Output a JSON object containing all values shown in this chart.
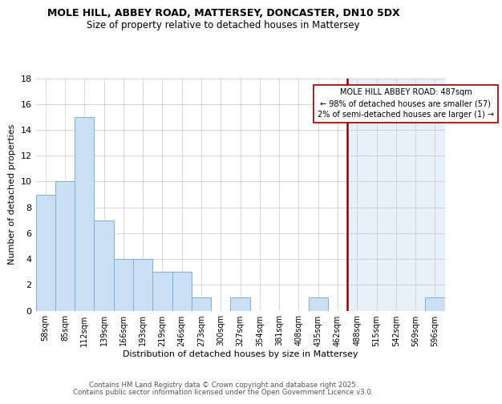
{
  "title_line1": "MOLE HILL, ABBEY ROAD, MATTERSEY, DONCASTER, DN10 5DX",
  "title_line2": "Size of property relative to detached houses in Mattersey",
  "xlabel": "Distribution of detached houses by size in Mattersey",
  "ylabel": "Number of detached properties",
  "categories": [
    "58sqm",
    "85sqm",
    "112sqm",
    "139sqm",
    "166sqm",
    "193sqm",
    "219sqm",
    "246sqm",
    "273sqm",
    "300sqm",
    "327sqm",
    "354sqm",
    "381sqm",
    "408sqm",
    "435sqm",
    "462sqm",
    "488sqm",
    "515sqm",
    "542sqm",
    "569sqm",
    "596sqm"
  ],
  "bar_values": [
    9,
    10,
    15,
    7,
    4,
    4,
    3,
    3,
    1,
    0,
    1,
    0,
    0,
    0,
    1,
    0,
    0,
    0,
    0,
    0,
    1
  ],
  "bar_color": "#cce0f5",
  "bar_edge_color": "#7ab0d4",
  "highlight_bar_idx": 16,
  "ylim": [
    0,
    18
  ],
  "yticks": [
    0,
    2,
    4,
    6,
    8,
    10,
    12,
    14,
    16,
    18
  ],
  "annotation_title": "MOLE HILL ABBEY ROAD: 487sqm",
  "annotation_line1": "← 98% of detached houses are smaller (57)",
  "annotation_line2": "2% of semi-detached houses are larger (1) →",
  "grid_color": "#c8c8c8",
  "bg_color": "#ffffff",
  "highlight_bg_color": "#e8f0f8",
  "footer_line1": "Contains HM Land Registry data © Crown copyright and database right 2025.",
  "footer_line2": "Contains public sector information licensed under the Open Government Licence v3.0."
}
